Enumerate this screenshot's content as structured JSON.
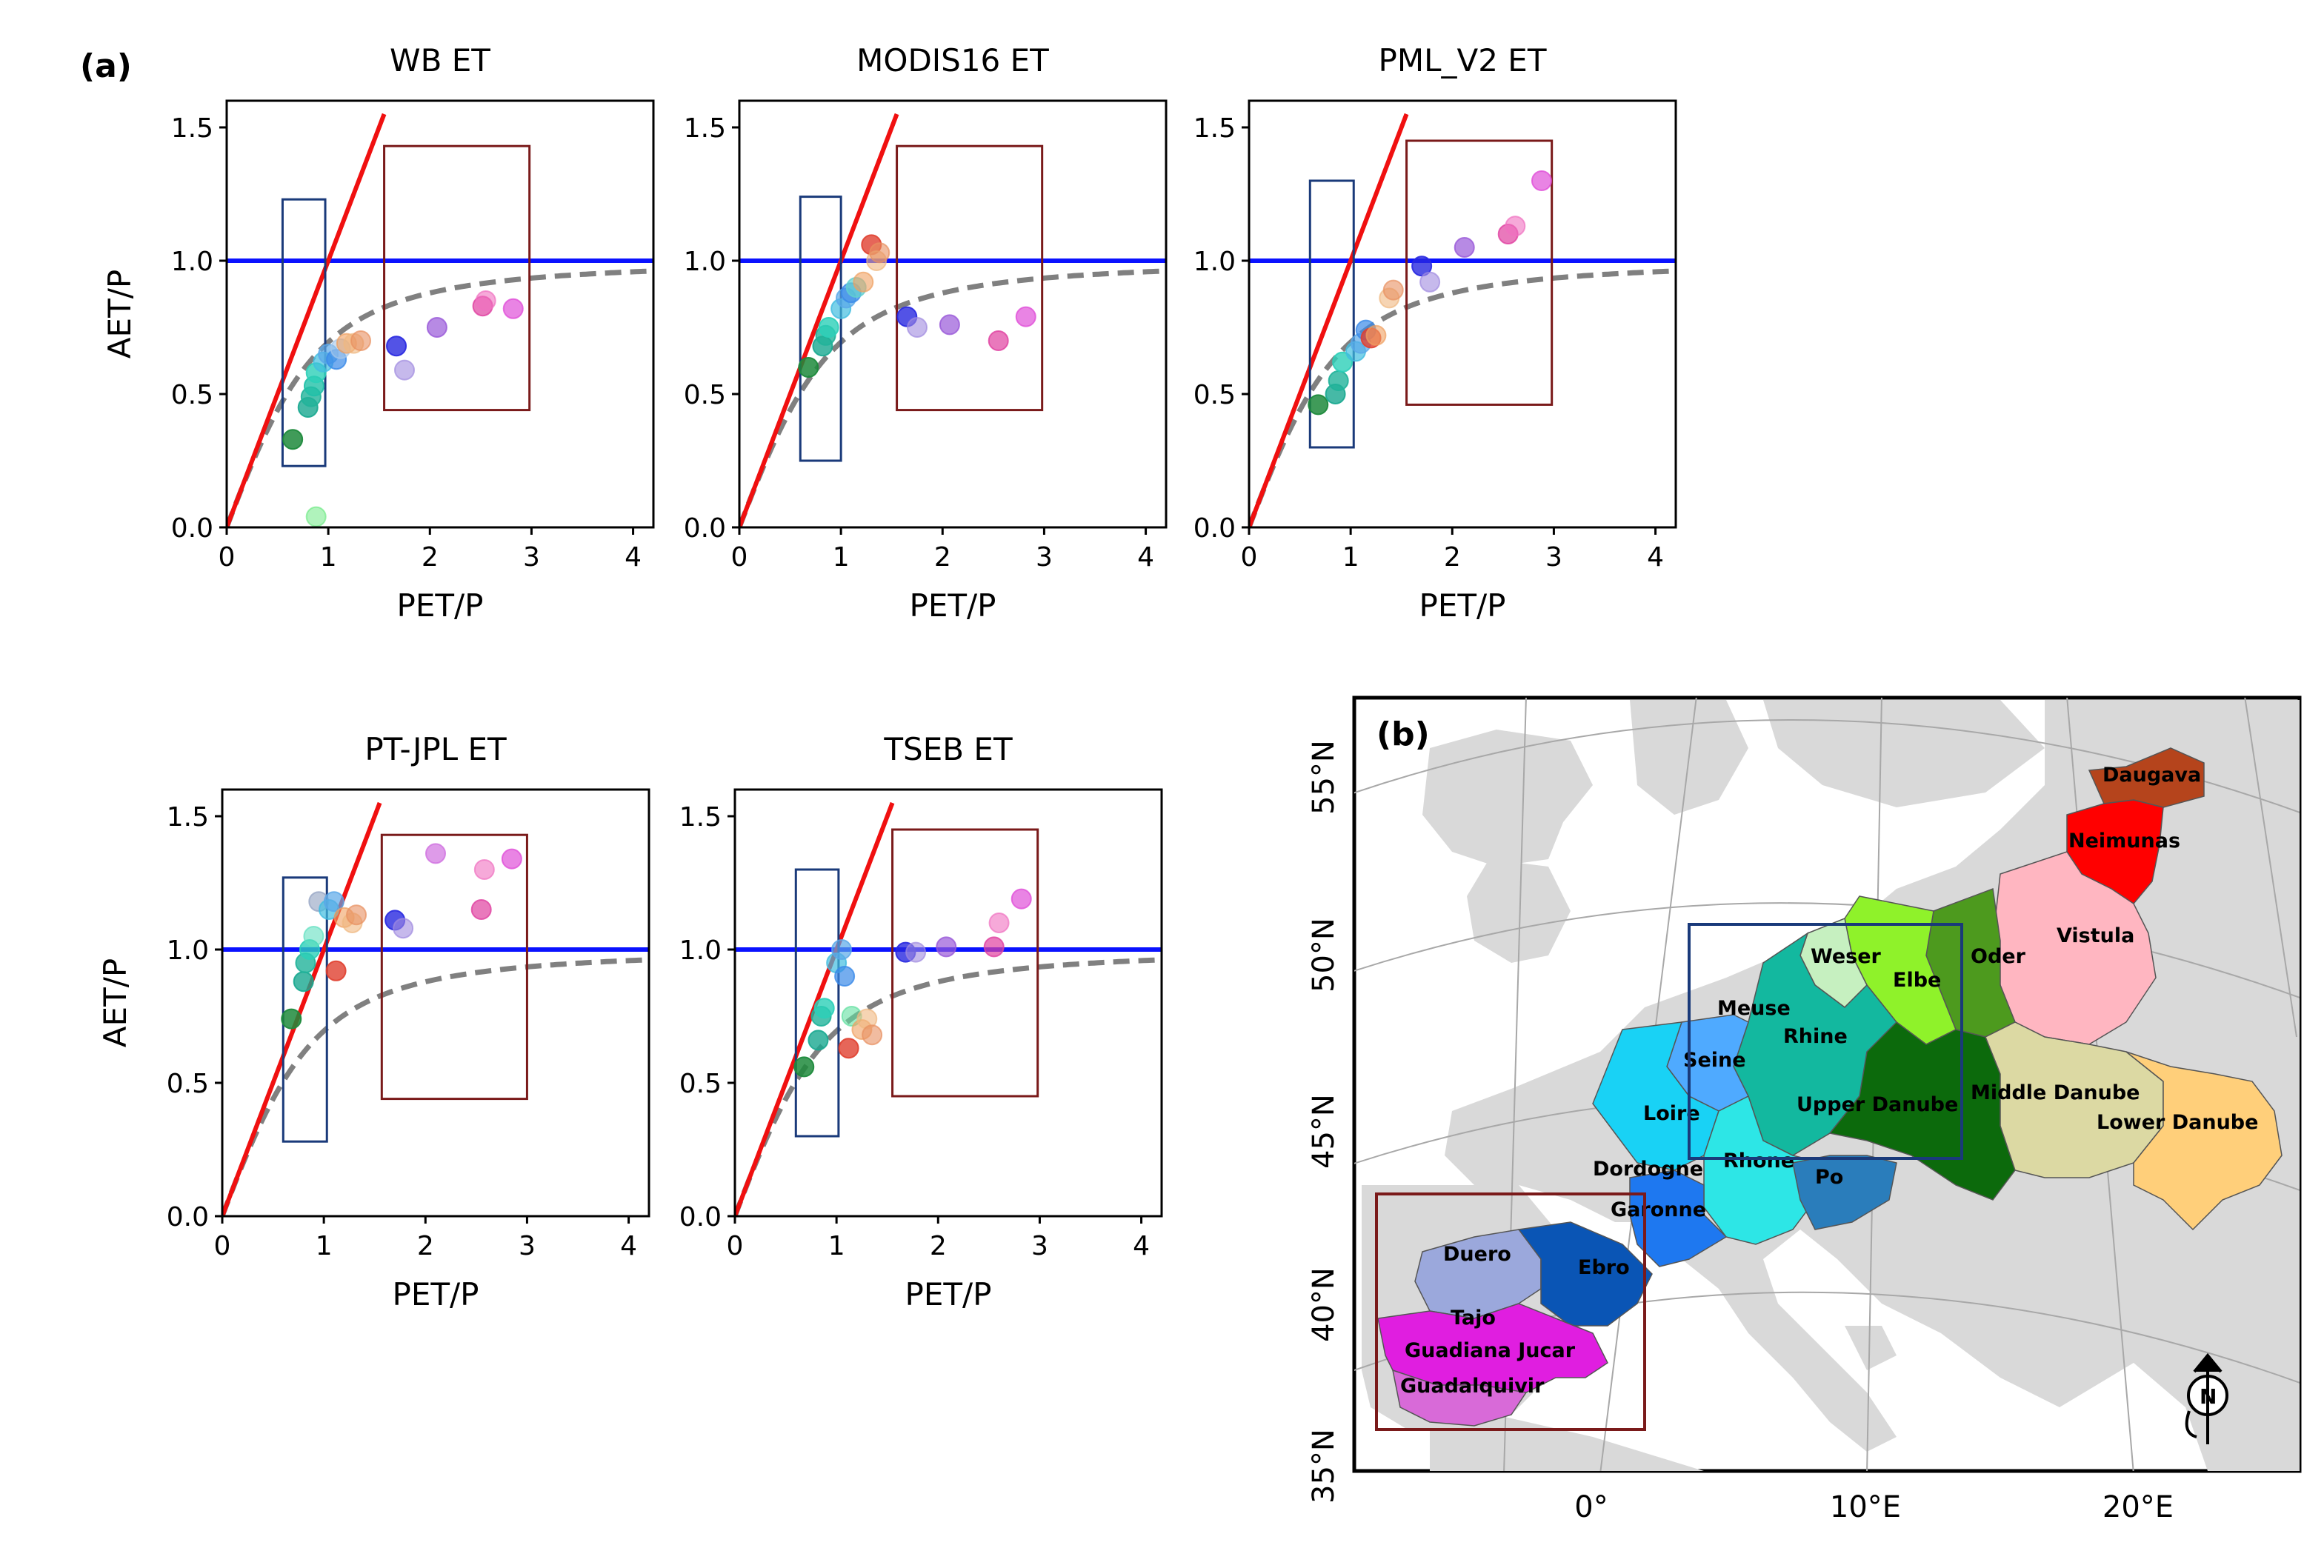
{
  "figure": {
    "label_a": "(a)",
    "label_b": "(b)"
  },
  "chart_data": [
    {
      "type": "scatter",
      "title": "WB ET",
      "xlabel": "PET/P",
      "ylabel": "AET/P",
      "xlim": [
        0,
        4.2
      ],
      "ylim": [
        0,
        1.6
      ],
      "xticks": [
        "0",
        "1",
        "2",
        "3",
        "4"
      ],
      "yticks": [
        "0.0",
        "0.5",
        "1.0",
        "1.5"
      ],
      "energy_limit_line": {
        "x": [
          0,
          1.55
        ],
        "y": [
          0,
          1.55
        ]
      },
      "water_limit_line": {
        "y": 1.0
      },
      "budyko_curve": "dashed",
      "humid_box": {
        "x": [
          0.55,
          0.97
        ],
        "y": [
          0.23,
          1.23
        ]
      },
      "arid_box": {
        "x": [
          1.55,
          2.98
        ],
        "y": [
          0.44,
          1.43
        ]
      },
      "points": [
        {
          "x": 0.65,
          "y": 0.33,
          "color": "#1e8a3c",
          "opacity": 0.85
        },
        {
          "x": 0.88,
          "y": 0.04,
          "color": "#62e87a",
          "opacity": 0.5
        },
        {
          "x": 0.8,
          "y": 0.45,
          "color": "#18a890",
          "opacity": 0.8
        },
        {
          "x": 0.83,
          "y": 0.49,
          "color": "#21b39a",
          "opacity": 0.8
        },
        {
          "x": 0.86,
          "y": 0.53,
          "color": "#20c0a8",
          "opacity": 0.8
        },
        {
          "x": 0.88,
          "y": 0.58,
          "color": "#2ccfb8",
          "opacity": 0.8
        },
        {
          "x": 0.95,
          "y": 0.62,
          "color": "#41bde0",
          "opacity": 0.7
        },
        {
          "x": 1.0,
          "y": 0.65,
          "color": "#5aa8e8",
          "opacity": 0.7
        },
        {
          "x": 1.08,
          "y": 0.63,
          "color": "#3a8ae8",
          "opacity": 0.7
        },
        {
          "x": 1.12,
          "y": 0.67,
          "color": "#a6c8ea",
          "opacity": 0.6
        },
        {
          "x": 1.18,
          "y": 0.69,
          "color": "#f0a060",
          "opacity": 0.6
        },
        {
          "x": 1.25,
          "y": 0.69,
          "color": "#f0b880",
          "opacity": 0.6
        },
        {
          "x": 1.32,
          "y": 0.7,
          "color": "#e89060",
          "opacity": 0.6
        },
        {
          "x": 1.67,
          "y": 0.68,
          "color": "#2828e0",
          "opacity": 0.8
        },
        {
          "x": 1.75,
          "y": 0.59,
          "color": "#a08ae0",
          "opacity": 0.6
        },
        {
          "x": 2.07,
          "y": 0.75,
          "color": "#9858d8",
          "opacity": 0.7
        },
        {
          "x": 2.52,
          "y": 0.83,
          "color": "#e040a0",
          "opacity": 0.7
        },
        {
          "x": 2.55,
          "y": 0.85,
          "color": "#f070c0",
          "opacity": 0.6
        },
        {
          "x": 2.82,
          "y": 0.82,
          "color": "#e050d8",
          "opacity": 0.7
        }
      ]
    },
    {
      "type": "scatter",
      "title": "MODIS16 ET",
      "xlabel": "PET/P",
      "ylabel": "",
      "xlim": [
        0,
        4.2
      ],
      "ylim": [
        0,
        1.6
      ],
      "xticks": [
        "0",
        "1",
        "2",
        "3",
        "4"
      ],
      "yticks": [
        "0.0",
        "0.5",
        "1.0",
        "1.5"
      ],
      "energy_limit_line": {
        "x": [
          0,
          1.55
        ],
        "y": [
          0,
          1.55
        ]
      },
      "water_limit_line": {
        "y": 1.0
      },
      "budyko_curve": "dashed",
      "humid_box": {
        "x": [
          0.6,
          1.0
        ],
        "y": [
          0.25,
          1.24
        ]
      },
      "arid_box": {
        "x": [
          1.55,
          2.98
        ],
        "y": [
          0.44,
          1.43
        ]
      },
      "points": [
        {
          "x": 0.68,
          "y": 0.6,
          "color": "#1e8a3c",
          "opacity": 0.85
        },
        {
          "x": 0.82,
          "y": 0.68,
          "color": "#18a890",
          "opacity": 0.8
        },
        {
          "x": 0.85,
          "y": 0.72,
          "color": "#21b39a",
          "opacity": 0.8
        },
        {
          "x": 0.88,
          "y": 0.75,
          "color": "#2ccfb8",
          "opacity": 0.8
        },
        {
          "x": 1.0,
          "y": 0.82,
          "color": "#41bde0",
          "opacity": 0.7
        },
        {
          "x": 1.05,
          "y": 0.86,
          "color": "#5aa8e8",
          "opacity": 0.7
        },
        {
          "x": 1.1,
          "y": 0.88,
          "color": "#3a8ae8",
          "opacity": 0.7
        },
        {
          "x": 1.15,
          "y": 0.9,
          "color": "#60d0d0",
          "opacity": 0.7
        },
        {
          "x": 1.22,
          "y": 0.92,
          "color": "#f0a060",
          "opacity": 0.6
        },
        {
          "x": 1.3,
          "y": 1.06,
          "color": "#e04030",
          "opacity": 0.8
        },
        {
          "x": 1.35,
          "y": 1.0,
          "color": "#f0b880",
          "opacity": 0.6
        },
        {
          "x": 1.38,
          "y": 1.03,
          "color": "#e89060",
          "opacity": 0.6
        },
        {
          "x": 1.65,
          "y": 0.79,
          "color": "#2828e0",
          "opacity": 0.8
        },
        {
          "x": 1.75,
          "y": 0.75,
          "color": "#a08ae0",
          "opacity": 0.6
        },
        {
          "x": 2.07,
          "y": 0.76,
          "color": "#9858d8",
          "opacity": 0.7
        },
        {
          "x": 2.55,
          "y": 0.7,
          "color": "#e040a0",
          "opacity": 0.7
        },
        {
          "x": 2.82,
          "y": 0.79,
          "color": "#e050d8",
          "opacity": 0.7
        }
      ]
    },
    {
      "type": "scatter",
      "title": "PML_V2 ET",
      "xlabel": "PET/P",
      "ylabel": "",
      "xlim": [
        0,
        4.2
      ],
      "ylim": [
        0,
        1.6
      ],
      "xticks": [
        "0",
        "1",
        "2",
        "3",
        "4"
      ],
      "yticks": [
        "0.0",
        "0.5",
        "1.0",
        "1.5"
      ],
      "energy_limit_line": {
        "x": [
          0,
          1.55
        ],
        "y": [
          0,
          1.55
        ]
      },
      "water_limit_line": {
        "y": 1.0
      },
      "budyko_curve": "dashed",
      "humid_box": {
        "x": [
          0.6,
          1.03
        ],
        "y": [
          0.3,
          1.3
        ]
      },
      "arid_box": {
        "x": [
          1.55,
          2.98
        ],
        "y": [
          0.46,
          1.45
        ]
      },
      "points": [
        {
          "x": 0.68,
          "y": 0.46,
          "color": "#1e8a3c",
          "opacity": 0.85
        },
        {
          "x": 0.85,
          "y": 0.5,
          "color": "#18a890",
          "opacity": 0.8
        },
        {
          "x": 0.88,
          "y": 0.55,
          "color": "#21b39a",
          "opacity": 0.8
        },
        {
          "x": 0.92,
          "y": 0.62,
          "color": "#2ccfb8",
          "opacity": 0.8
        },
        {
          "x": 1.05,
          "y": 0.66,
          "color": "#41bde0",
          "opacity": 0.7
        },
        {
          "x": 1.1,
          "y": 0.69,
          "color": "#5aa8e8",
          "opacity": 0.7
        },
        {
          "x": 1.15,
          "y": 0.74,
          "color": "#3a8ae8",
          "opacity": 0.7
        },
        {
          "x": 1.2,
          "y": 0.71,
          "color": "#e04030",
          "opacity": 0.8
        },
        {
          "x": 1.25,
          "y": 0.72,
          "color": "#f0a060",
          "opacity": 0.6
        },
        {
          "x": 1.38,
          "y": 0.86,
          "color": "#f0b880",
          "opacity": 0.6
        },
        {
          "x": 1.42,
          "y": 0.89,
          "color": "#e89060",
          "opacity": 0.6
        },
        {
          "x": 1.7,
          "y": 0.98,
          "color": "#2828e0",
          "opacity": 0.8
        },
        {
          "x": 1.78,
          "y": 0.92,
          "color": "#a08ae0",
          "opacity": 0.6
        },
        {
          "x": 2.12,
          "y": 1.05,
          "color": "#9858d8",
          "opacity": 0.7
        },
        {
          "x": 2.55,
          "y": 1.1,
          "color": "#e040a0",
          "opacity": 0.7
        },
        {
          "x": 2.62,
          "y": 1.13,
          "color": "#f070c0",
          "opacity": 0.6
        },
        {
          "x": 2.88,
          "y": 1.3,
          "color": "#e050d8",
          "opacity": 0.7
        }
      ]
    },
    {
      "type": "scatter",
      "title": "PT-JPL ET",
      "xlabel": "PET/P",
      "ylabel": "AET/P",
      "xlim": [
        0,
        4.2
      ],
      "ylim": [
        0,
        1.6
      ],
      "xticks": [
        "0",
        "1",
        "2",
        "3",
        "4"
      ],
      "yticks": [
        "0.0",
        "0.5",
        "1.0",
        "1.5"
      ],
      "energy_limit_line": {
        "x": [
          0,
          1.55
        ],
        "y": [
          0,
          1.55
        ]
      },
      "water_limit_line": {
        "y": 1.0
      },
      "budyko_curve": "dashed",
      "humid_box": {
        "x": [
          0.6,
          1.03
        ],
        "y": [
          0.28,
          1.27
        ]
      },
      "arid_box": {
        "x": [
          1.57,
          3.0
        ],
        "y": [
          0.44,
          1.43
        ]
      },
      "points": [
        {
          "x": 0.68,
          "y": 0.74,
          "color": "#1e8a3c",
          "opacity": 0.85
        },
        {
          "x": 0.8,
          "y": 0.88,
          "color": "#18a890",
          "opacity": 0.8
        },
        {
          "x": 0.82,
          "y": 0.95,
          "color": "#21b39a",
          "opacity": 0.8
        },
        {
          "x": 0.86,
          "y": 1.0,
          "color": "#2ccfb8",
          "opacity": 0.8
        },
        {
          "x": 0.9,
          "y": 1.05,
          "color": "#60e0c0",
          "opacity": 0.6
        },
        {
          "x": 0.95,
          "y": 1.18,
          "color": "#90a0c0",
          "opacity": 0.6
        },
        {
          "x": 1.05,
          "y": 1.15,
          "color": "#41bde0",
          "opacity": 0.7
        },
        {
          "x": 1.1,
          "y": 1.18,
          "color": "#5aa8e8",
          "opacity": 0.7
        },
        {
          "x": 1.12,
          "y": 0.92,
          "color": "#e04030",
          "opacity": 0.8
        },
        {
          "x": 1.2,
          "y": 1.12,
          "color": "#f0a060",
          "opacity": 0.6
        },
        {
          "x": 1.28,
          "y": 1.1,
          "color": "#f0b880",
          "opacity": 0.6
        },
        {
          "x": 1.32,
          "y": 1.13,
          "color": "#e89060",
          "opacity": 0.6
        },
        {
          "x": 1.7,
          "y": 1.11,
          "color": "#2828e0",
          "opacity": 0.8
        },
        {
          "x": 1.78,
          "y": 1.08,
          "color": "#a08ae0",
          "opacity": 0.6
        },
        {
          "x": 2.1,
          "y": 1.36,
          "color": "#d070e0",
          "opacity": 0.7
        },
        {
          "x": 2.55,
          "y": 1.15,
          "color": "#e040a0",
          "opacity": 0.7
        },
        {
          "x": 2.58,
          "y": 1.3,
          "color": "#f070c0",
          "opacity": 0.6
        },
        {
          "x": 2.85,
          "y": 1.34,
          "color": "#e050d8",
          "opacity": 0.7
        }
      ]
    },
    {
      "type": "scatter",
      "title": "TSEB ET",
      "xlabel": "PET/P",
      "ylabel": "",
      "xlim": [
        0,
        4.2
      ],
      "ylim": [
        0,
        1.6
      ],
      "xticks": [
        "0",
        "1",
        "2",
        "3",
        "4"
      ],
      "yticks": [
        "0.0",
        "0.5",
        "1.0",
        "1.5"
      ],
      "energy_limit_line": {
        "x": [
          0,
          1.55
        ],
        "y": [
          0,
          1.55
        ]
      },
      "water_limit_line": {
        "y": 1.0
      },
      "budyko_curve": "dashed",
      "humid_box": {
        "x": [
          0.6,
          1.02
        ],
        "y": [
          0.3,
          1.3
        ]
      },
      "arid_box": {
        "x": [
          1.55,
          2.98
        ],
        "y": [
          0.45,
          1.45
        ]
      },
      "points": [
        {
          "x": 0.68,
          "y": 0.56,
          "color": "#1e8a3c",
          "opacity": 0.85
        },
        {
          "x": 0.82,
          "y": 0.66,
          "color": "#18a890",
          "opacity": 0.8
        },
        {
          "x": 0.85,
          "y": 0.75,
          "color": "#21b39a",
          "opacity": 0.8
        },
        {
          "x": 0.88,
          "y": 0.78,
          "color": "#2ccfb8",
          "opacity": 0.8
        },
        {
          "x": 1.0,
          "y": 0.95,
          "color": "#41bde0",
          "opacity": 0.7
        },
        {
          "x": 1.05,
          "y": 1.0,
          "color": "#5aa8e8",
          "opacity": 0.7
        },
        {
          "x": 1.08,
          "y": 0.9,
          "color": "#3a8ae8",
          "opacity": 0.7
        },
        {
          "x": 1.12,
          "y": 0.63,
          "color": "#e04030",
          "opacity": 0.8
        },
        {
          "x": 1.15,
          "y": 0.75,
          "color": "#60e0a0",
          "opacity": 0.6
        },
        {
          "x": 1.25,
          "y": 0.7,
          "color": "#f0a060",
          "opacity": 0.6
        },
        {
          "x": 1.3,
          "y": 0.74,
          "color": "#f0b880",
          "opacity": 0.6
        },
        {
          "x": 1.35,
          "y": 0.68,
          "color": "#e89060",
          "opacity": 0.6
        },
        {
          "x": 1.68,
          "y": 0.99,
          "color": "#2828e0",
          "opacity": 0.8
        },
        {
          "x": 1.78,
          "y": 0.99,
          "color": "#a08ae0",
          "opacity": 0.6
        },
        {
          "x": 2.08,
          "y": 1.01,
          "color": "#9858d8",
          "opacity": 0.7
        },
        {
          "x": 2.55,
          "y": 1.01,
          "color": "#e040a0",
          "opacity": 0.7
        },
        {
          "x": 2.6,
          "y": 1.1,
          "color": "#f070c0",
          "opacity": 0.6
        },
        {
          "x": 2.82,
          "y": 1.19,
          "color": "#e050d8",
          "opacity": 0.7
        }
      ]
    }
  ],
  "map": {
    "lat_labels": [
      "55°N",
      "50°N",
      "45°N",
      "40°N",
      "35°N"
    ],
    "lon_labels": [
      "0°",
      "10°E",
      "20°E"
    ],
    "basins": [
      {
        "name": "Daugava",
        "color": "#b5441c"
      },
      {
        "name": "Neimunas",
        "color": "#ff0000"
      },
      {
        "name": "Vistula",
        "color": "#ffb6c1"
      },
      {
        "name": "Oder",
        "color": "#4d9a1e"
      },
      {
        "name": "Elbe",
        "color": "#8ff22a"
      },
      {
        "name": "Weser",
        "color": "#c6f0c0"
      },
      {
        "name": "Meuse",
        "color": "#12c9a8"
      },
      {
        "name": "Rhine",
        "color": "#13b89f"
      },
      {
        "name": "Seine",
        "color": "#4faaff"
      },
      {
        "name": "Loire",
        "color": "#19d2f5"
      },
      {
        "name": "Upper Danube",
        "color": "#0c6a0c"
      },
      {
        "name": "Middle Danube",
        "color": "#dcd9a3"
      },
      {
        "name": "Lower Danube",
        "color": "#ffcf7a"
      },
      {
        "name": "Rhone",
        "color": "#2de6e6"
      },
      {
        "name": "Po",
        "color": "#2a7dbb"
      },
      {
        "name": "Dordogne",
        "color": "#2f76e6"
      },
      {
        "name": "Garonne",
        "color": "#1e78f0"
      },
      {
        "name": "Duero",
        "color": "#9ba8dc"
      },
      {
        "name": "Ebro",
        "color": "#0a55b5"
      },
      {
        "name": "Tajo",
        "color": "#e01ee0"
      },
      {
        "name": "Guadiana Jucar",
        "color": "#d43ad4"
      },
      {
        "name": "Guadalquivir",
        "color": "#d86ad8"
      }
    ],
    "humid_box_color": "#1a3a7a",
    "arid_box_color": "#7a1a1a",
    "north_arrow_label": "N"
  }
}
